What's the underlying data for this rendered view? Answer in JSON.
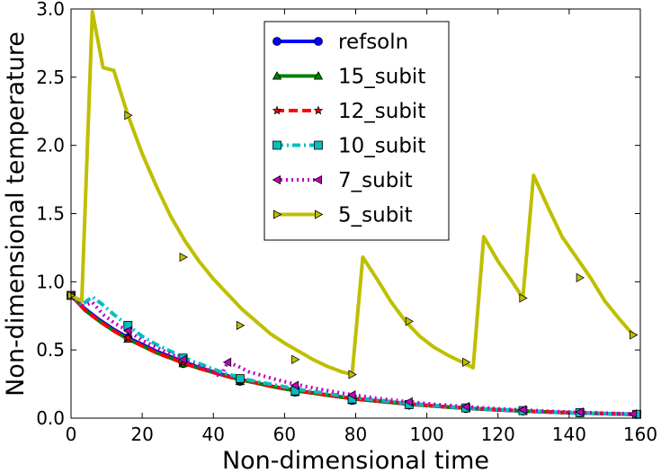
{
  "chart_data": {
    "type": "line",
    "title": "",
    "xlabel": "Non-dimensional time",
    "ylabel": "Non-dimensional temperature",
    "xlim": [
      0,
      160
    ],
    "ylim": [
      0,
      3.0
    ],
    "xticks": [
      0,
      20,
      40,
      60,
      80,
      100,
      120,
      140,
      160
    ],
    "yticks": [
      0.0,
      0.5,
      1.0,
      1.5,
      2.0,
      2.5,
      3.0
    ],
    "xtick_labels": [
      "0",
      "20",
      "40",
      "60",
      "80",
      "100",
      "120",
      "140",
      "160"
    ],
    "ytick_labels": [
      "0.0",
      "0.5",
      "1.0",
      "1.5",
      "2.0",
      "2.5",
      "3.0"
    ],
    "legend_position": "top-center",
    "series": [
      {
        "name": "refsoln",
        "color": "#0000ff",
        "dash": "solid",
        "marker": "circle",
        "x": [
          0,
          4,
          8,
          12,
          16,
          20,
          24,
          28,
          32,
          36,
          40,
          44,
          48,
          52,
          56,
          60,
          64,
          68,
          72,
          76,
          80,
          84,
          88,
          92,
          96,
          100,
          104,
          108,
          112,
          116,
          120,
          124,
          128,
          132,
          136,
          140,
          144,
          148,
          152,
          156,
          159
        ],
        "y": [
          0.9,
          0.8,
          0.72,
          0.65,
          0.59,
          0.54,
          0.49,
          0.45,
          0.41,
          0.37,
          0.34,
          0.31,
          0.28,
          0.26,
          0.235,
          0.215,
          0.2,
          0.185,
          0.17,
          0.155,
          0.14,
          0.13,
          0.12,
          0.11,
          0.1,
          0.093,
          0.085,
          0.078,
          0.072,
          0.066,
          0.06,
          0.056,
          0.051,
          0.047,
          0.043,
          0.04,
          0.037,
          0.034,
          0.031,
          0.029,
          0.027
        ],
        "marker_x": [
          0,
          16,
          31.5,
          47.5,
          63,
          79,
          95,
          111,
          127,
          143,
          159
        ],
        "marker_y": [
          0.9,
          0.59,
          0.4,
          0.27,
          0.19,
          0.13,
          0.095,
          0.07,
          0.052,
          0.038,
          0.027
        ]
      },
      {
        "name": "15_subit",
        "color": "#008000",
        "dash": "solid",
        "marker": "triangle-up",
        "x": [
          0,
          4,
          8,
          12,
          16,
          20,
          24,
          28,
          32,
          36,
          40,
          44,
          48,
          52,
          56,
          60,
          64,
          68,
          72,
          76,
          80,
          84,
          88,
          92,
          96,
          100,
          104,
          108,
          112,
          116,
          120,
          124,
          128,
          132,
          136,
          140,
          144,
          148,
          152,
          156,
          159
        ],
        "y": [
          0.9,
          0.79,
          0.71,
          0.64,
          0.58,
          0.53,
          0.48,
          0.44,
          0.4,
          0.365,
          0.335,
          0.305,
          0.28,
          0.258,
          0.235,
          0.215,
          0.198,
          0.183,
          0.168,
          0.154,
          0.14,
          0.13,
          0.12,
          0.11,
          0.1,
          0.093,
          0.085,
          0.078,
          0.072,
          0.066,
          0.061,
          0.056,
          0.051,
          0.047,
          0.043,
          0.04,
          0.037,
          0.034,
          0.031,
          0.029,
          0.027
        ],
        "marker_x": [
          0,
          16,
          31.5,
          47.5,
          63,
          79,
          95,
          111,
          127,
          143,
          159
        ],
        "marker_y": [
          0.9,
          0.58,
          0.4,
          0.27,
          0.19,
          0.13,
          0.095,
          0.07,
          0.052,
          0.038,
          0.027
        ]
      },
      {
        "name": "12_subit",
        "color": "#ff0000",
        "dash": "dashed",
        "marker": "star",
        "x": [
          0,
          4,
          8,
          12,
          16,
          20,
          24,
          28,
          32,
          36,
          40,
          44,
          48,
          52,
          56,
          60,
          64,
          68,
          72,
          76,
          80,
          84,
          88,
          92,
          96,
          100,
          104,
          108,
          112,
          116,
          120,
          124,
          128,
          132,
          136,
          140,
          144,
          148,
          152,
          156,
          159
        ],
        "y": [
          0.9,
          0.79,
          0.71,
          0.64,
          0.58,
          0.53,
          0.48,
          0.44,
          0.4,
          0.365,
          0.335,
          0.305,
          0.28,
          0.26,
          0.237,
          0.217,
          0.2,
          0.184,
          0.169,
          0.155,
          0.142,
          0.131,
          0.121,
          0.111,
          0.102,
          0.094,
          0.086,
          0.079,
          0.073,
          0.067,
          0.062,
          0.057,
          0.052,
          0.048,
          0.044,
          0.041,
          0.038,
          0.035,
          0.032,
          0.03,
          0.028
        ],
        "marker_x": [
          0,
          16,
          31.5,
          47.5,
          63,
          79,
          95,
          111,
          127,
          143,
          159
        ],
        "marker_y": [
          0.9,
          0.59,
          0.41,
          0.27,
          0.19,
          0.13,
          0.1,
          0.072,
          0.053,
          0.039,
          0.028
        ]
      },
      {
        "name": "10_subit",
        "color": "#00bfbf",
        "dash": "dashdot",
        "marker": "square",
        "x": [
          0,
          3,
          6,
          9,
          12,
          16,
          20,
          24,
          28,
          32,
          36,
          40,
          43,
          46,
          48,
          52,
          56,
          60,
          64,
          68,
          72,
          76,
          80,
          84,
          88,
          92,
          96,
          100,
          104,
          108,
          112,
          116,
          120,
          124,
          128,
          132,
          136,
          140,
          144,
          148,
          152,
          156,
          159
        ],
        "y": [
          0.9,
          0.83,
          0.89,
          0.83,
          0.76,
          0.68,
          0.6,
          0.54,
          0.49,
          0.44,
          0.4,
          0.36,
          0.33,
          0.31,
          0.29,
          0.27,
          0.25,
          0.23,
          0.21,
          0.195,
          0.18,
          0.165,
          0.15,
          0.138,
          0.127,
          0.116,
          0.106,
          0.097,
          0.089,
          0.081,
          0.074,
          0.068,
          0.063,
          0.058,
          0.053,
          0.049,
          0.045,
          0.041,
          0.038,
          0.035,
          0.032,
          0.03,
          0.028
        ],
        "marker_x": [
          0,
          16,
          31.5,
          47.5,
          63,
          79,
          95,
          111,
          127,
          143,
          159
        ],
        "marker_y": [
          0.9,
          0.68,
          0.44,
          0.29,
          0.2,
          0.14,
          0.1,
          0.075,
          0.055,
          0.04,
          0.028
        ]
      },
      {
        "name": "7_subit",
        "color": "#bf00bf",
        "dash": "dotted",
        "marker": "triangle-left",
        "x": [
          0,
          3,
          6,
          9,
          12,
          16,
          20,
          24,
          28,
          32,
          36,
          40,
          42,
          44,
          47,
          50,
          54,
          58,
          62,
          66,
          70,
          74,
          78,
          82,
          86,
          90,
          94,
          98,
          102,
          106,
          110,
          114,
          118,
          122,
          126,
          130,
          134,
          138,
          142,
          146,
          150,
          154,
          158
        ],
        "y": [
          0.9,
          0.82,
          0.85,
          0.76,
          0.7,
          0.64,
          0.57,
          0.52,
          0.47,
          0.42,
          0.38,
          0.34,
          0.3,
          0.41,
          0.38,
          0.34,
          0.31,
          0.28,
          0.255,
          0.232,
          0.212,
          0.193,
          0.176,
          0.16,
          0.146,
          0.134,
          0.122,
          0.112,
          0.102,
          0.094,
          0.086,
          0.079,
          0.072,
          0.066,
          0.061,
          0.056,
          0.051,
          0.047,
          0.043,
          0.04,
          0.037,
          0.034,
          0.031
        ],
        "marker_x": [
          0,
          16,
          31.5,
          44,
          63,
          79,
          95,
          111,
          127,
          143,
          158
        ],
        "marker_y": [
          0.9,
          0.64,
          0.43,
          0.41,
          0.24,
          0.17,
          0.12,
          0.085,
          0.062,
          0.045,
          0.031
        ]
      },
      {
        "name": "5_subit",
        "color": "#bfbf00",
        "dash": "solid",
        "marker": "triangle-right",
        "x": [
          0,
          3,
          6,
          9,
          12,
          16,
          20,
          24,
          28,
          32,
          36,
          40,
          44,
          48,
          52,
          56,
          60,
          64,
          68,
          72,
          76,
          79,
          82,
          86,
          90,
          94,
          98,
          102,
          106,
          110,
          113,
          116,
          120,
          124,
          127,
          130,
          134,
          138,
          142,
          146,
          150,
          154,
          158
        ],
        "y": [
          0.9,
          0.86,
          2.98,
          2.57,
          2.55,
          2.22,
          1.94,
          1.7,
          1.48,
          1.3,
          1.15,
          1.02,
          0.91,
          0.8,
          0.71,
          0.62,
          0.55,
          0.49,
          0.43,
          0.38,
          0.34,
          0.32,
          1.18,
          1.02,
          0.85,
          0.71,
          0.6,
          0.52,
          0.46,
          0.41,
          0.37,
          1.33,
          1.15,
          1.0,
          0.88,
          1.78,
          1.55,
          1.33,
          1.18,
          1.03,
          0.86,
          0.73,
          0.61
        ],
        "marker_x": [
          0,
          16,
          31.5,
          47.5,
          63,
          79,
          95,
          111,
          127,
          143,
          158
        ],
        "marker_y": [
          0.9,
          2.22,
          1.18,
          0.68,
          0.43,
          0.32,
          0.71,
          0.41,
          0.88,
          1.03,
          0.61
        ]
      }
    ]
  }
}
